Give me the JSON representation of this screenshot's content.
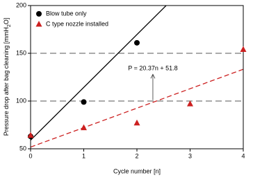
{
  "chart_data": {
    "type": "scatter",
    "xlabel": "Cycle number [n]",
    "ylabel": [
      "Pressure drop after bag cleaning [mmH",
      "2",
      "O]"
    ],
    "xlim": [
      0,
      4
    ],
    "ylim": [
      50,
      200
    ],
    "xticks": [
      0,
      1,
      2,
      3,
      4
    ],
    "yticks": [
      50,
      100,
      150,
      200
    ],
    "legend": "top-left",
    "series": [
      {
        "name": "Blow tube only",
        "color": "#000000",
        "marker": "circle",
        "x": [
          0,
          1,
          2
        ],
        "values": [
          63,
          99,
          161
        ]
      },
      {
        "name": "C type nozzle installed",
        "color": "#cc2020",
        "marker": "triangle",
        "x": [
          0,
          1,
          2,
          3,
          4
        ],
        "values": [
          64,
          72,
          77,
          97,
          154
        ]
      }
    ],
    "fits": [
      {
        "slope": 55.3,
        "intercept": 59,
        "color": "#000000",
        "dashed": false
      },
      {
        "slope": 20.37,
        "intercept": 51.8,
        "color": "#cc2020",
        "dashed": true
      }
    ],
    "hlines": [
      100,
      150
    ],
    "annotation": {
      "text": "P = 20.37n + 51.8",
      "x": 2.3,
      "y": [
        101,
        128
      ]
    }
  }
}
